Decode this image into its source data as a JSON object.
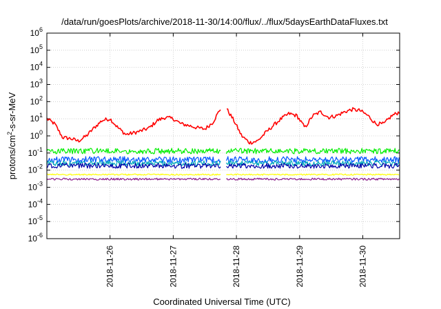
{
  "chart_data": {
    "type": "line",
    "title": "/data/run/goesPlots/archive/2018-11-30/14:00/flux/../flux/5daysEarthDataFluxes.txt",
    "xlabel": "Coordinated Universal Time (UTC)",
    "ylabel_base": "protons/cm",
    "ylabel_exp": "2",
    "ylabel_rest": "-s-sr-MeV",
    "y_scale": "log",
    "ylim": [
      1e-06,
      1000000.0
    ],
    "y_ticks": [
      {
        "base": "10",
        "exp": "-6"
      },
      {
        "base": "10",
        "exp": "-5"
      },
      {
        "base": "10",
        "exp": "-4"
      },
      {
        "base": "10",
        "exp": "-3"
      },
      {
        "base": "10",
        "exp": "-2"
      },
      {
        "base": "10",
        "exp": "-1"
      },
      {
        "base": "10",
        "exp": "0"
      },
      {
        "base": "10",
        "exp": "1"
      },
      {
        "base": "10",
        "exp": "2"
      },
      {
        "base": "10",
        "exp": "3"
      },
      {
        "base": "10",
        "exp": "4"
      },
      {
        "base": "10",
        "exp": "5"
      },
      {
        "base": "10",
        "exp": "6"
      }
    ],
    "xlim": [
      "2018-11-25T00:00",
      "2018-11-30T14:00"
    ],
    "x_ticks": [
      "2018-11-26",
      "2018-11-27",
      "2018-11-28",
      "2018-11-29",
      "2018-11-30"
    ],
    "grid": true,
    "data_gap": [
      "2018-11-27T18:00",
      "2018-11-27T20:00"
    ],
    "series": [
      {
        "color": "#ff0000",
        "x": [
          "2018-11-25T00:00",
          "2018-11-25T03:00",
          "2018-11-25T06:00",
          "2018-11-25T09:00",
          "2018-11-25T12:00",
          "2018-11-25T15:00",
          "2018-11-25T18:00",
          "2018-11-25T21:00",
          "2018-11-26T00:00",
          "2018-11-26T03:00",
          "2018-11-26T06:00",
          "2018-11-26T09:00",
          "2018-11-26T12:00",
          "2018-11-26T15:00",
          "2018-11-26T18:00",
          "2018-11-26T21:00",
          "2018-11-27T00:00",
          "2018-11-27T03:00",
          "2018-11-27T06:00",
          "2018-11-27T09:00",
          "2018-11-27T12:00",
          "2018-11-27T15:00",
          "2018-11-27T18:00",
          "2018-11-27T20:00",
          "2018-11-27T23:00",
          "2018-11-28T02:00",
          "2018-11-28T05:00",
          "2018-11-28T08:00",
          "2018-11-28T11:00",
          "2018-11-28T14:00",
          "2018-11-28T17:00",
          "2018-11-28T20:00",
          "2018-11-28T23:00",
          "2018-11-29T02:00",
          "2018-11-29T05:00",
          "2018-11-29T08:00",
          "2018-11-29T11:00",
          "2018-11-29T14:00",
          "2018-11-29T17:00",
          "2018-11-29T20:00",
          "2018-11-29T23:00",
          "2018-11-30T02:00",
          "2018-11-30T05:00",
          "2018-11-30T08:00",
          "2018-11-30T11:00",
          "2018-11-30T14:00"
        ],
        "values": [
          10,
          5,
          0.8,
          0.7,
          0.5,
          1,
          3,
          8,
          10,
          3,
          1.2,
          1.5,
          2,
          3,
          8,
          12,
          10,
          5,
          4,
          3,
          2.5,
          6,
          40,
          45,
          8,
          1,
          0.4,
          0.5,
          1.5,
          4,
          10,
          20,
          15,
          3,
          15,
          25,
          12,
          15,
          25,
          35,
          30,
          15,
          5,
          5,
          15,
          25
        ]
      },
      {
        "color": "#00ee00",
        "x": [
          "2018-11-25T00:00",
          "2018-11-27T18:00",
          "2018-11-27T20:00",
          "2018-11-30T14:00"
        ],
        "values": [
          0.13,
          0.13,
          0.13,
          0.13
        ]
      },
      {
        "color": "#0055ff",
        "x": [
          "2018-11-25T00:00",
          "2018-11-27T18:00",
          "2018-11-27T20:00",
          "2018-11-30T14:00"
        ],
        "values": [
          0.04,
          0.04,
          0.04,
          0.04
        ]
      },
      {
        "color": "#00aabb",
        "x": [
          "2018-11-25T00:00",
          "2018-11-27T18:00",
          "2018-11-27T20:00",
          "2018-11-30T14:00"
        ],
        "values": [
          0.025,
          0.025,
          0.025,
          0.025
        ]
      },
      {
        "color": "#0000aa",
        "x": [
          "2018-11-25T00:00",
          "2018-11-27T18:00",
          "2018-11-27T20:00",
          "2018-11-30T14:00"
        ],
        "values": [
          0.018,
          0.018,
          0.018,
          0.018
        ]
      },
      {
        "color": "#ffff00",
        "x": [
          "2018-11-25T00:00",
          "2018-11-27T18:00",
          "2018-11-27T20:00",
          "2018-11-30T14:00"
        ],
        "values": [
          0.0055,
          0.0055,
          0.0055,
          0.0055
        ]
      },
      {
        "color": "#8b1a89",
        "x": [
          "2018-11-25T00:00",
          "2018-11-27T18:00",
          "2018-11-27T20:00",
          "2018-11-30T14:00"
        ],
        "values": [
          0.003,
          0.003,
          0.003,
          0.003
        ]
      }
    ]
  }
}
